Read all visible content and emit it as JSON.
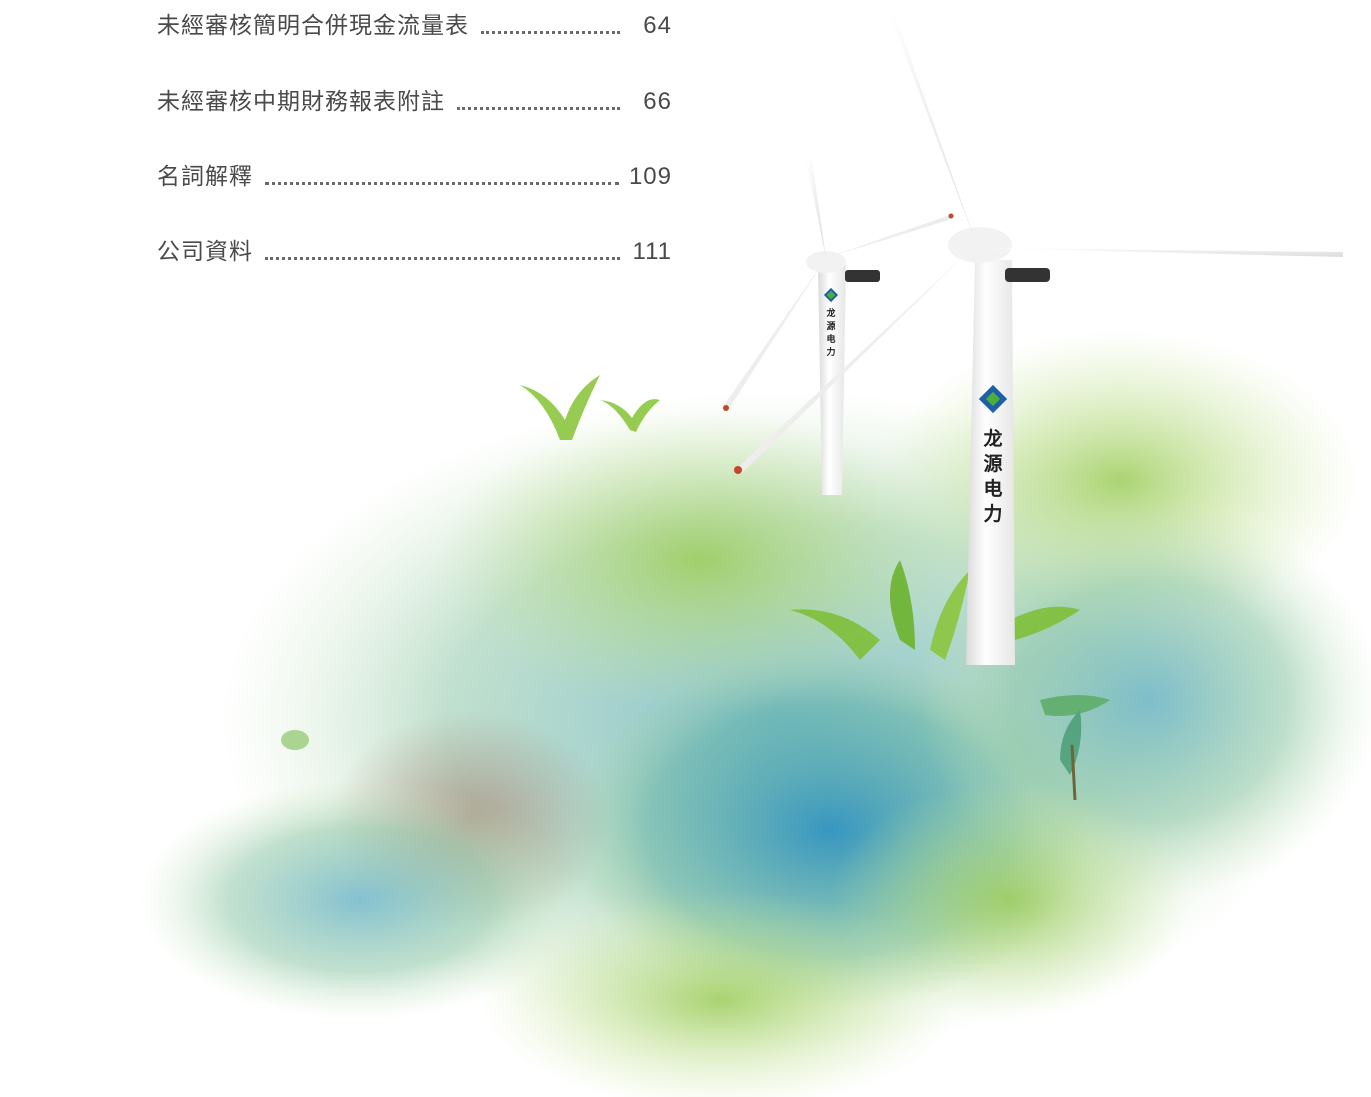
{
  "toc": {
    "entries": [
      {
        "title": "未經審核簡明合併現金流量表",
        "page": "64"
      },
      {
        "title": "未經審核中期財務報表附註",
        "page": "66"
      },
      {
        "title": "名詞解釋",
        "page": "109"
      },
      {
        "title": "公司資料",
        "page": "111"
      }
    ]
  },
  "turbine_brand": {
    "char1": "龙",
    "char2": "源",
    "char3": "电",
    "char4": "力"
  },
  "colors": {
    "text": "#4a4a4a",
    "leaf_green": "#7fbf3a",
    "water_blue": "#3a9ec4",
    "logo_blue": "#1f5fa8",
    "logo_green": "#4caf3a"
  }
}
